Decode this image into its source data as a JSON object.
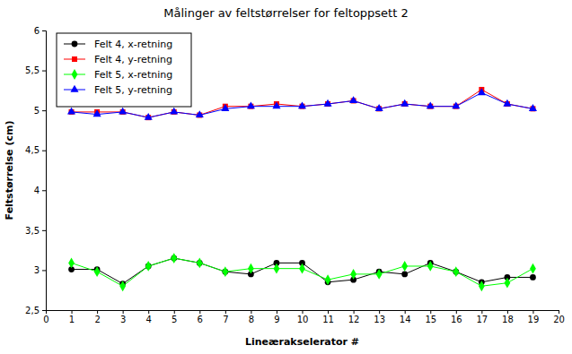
{
  "chart_data": {
    "type": "line",
    "title": "Målinger av feltstørrelser for feltoppsett 2",
    "x_label": "Lineærakselerator #",
    "y_label": "Feltstørrelse (cm)",
    "x": [
      1,
      2,
      3,
      4,
      5,
      6,
      7,
      8,
      9,
      10,
      11,
      12,
      13,
      14,
      15,
      16,
      17,
      18,
      19
    ],
    "series": [
      {
        "name": "Felt 4, x-retning",
        "color": "#000000",
        "marker": "circle",
        "values": [
          3.01,
          3.01,
          2.83,
          3.05,
          3.15,
          3.09,
          2.98,
          2.95,
          3.09,
          3.09,
          2.85,
          2.88,
          2.98,
          2.95,
          3.09,
          2.98,
          2.85,
          2.91,
          2.91
        ]
      },
      {
        "name": "Felt 4, y-retning",
        "color": "#ff0000",
        "marker": "square",
        "values": [
          4.98,
          4.98,
          4.98,
          4.91,
          4.98,
          4.94,
          5.05,
          5.05,
          5.08,
          5.05,
          5.08,
          5.12,
          5.02,
          5.08,
          5.05,
          5.05,
          5.26,
          5.08,
          5.02
        ]
      },
      {
        "name": "Felt 5, x-retning",
        "color": "#00ff00",
        "marker": "diamond",
        "values": [
          3.09,
          2.98,
          2.8,
          3.05,
          3.15,
          3.09,
          2.98,
          3.02,
          3.02,
          3.02,
          2.88,
          2.95,
          2.95,
          3.05,
          3.05,
          2.98,
          2.8,
          2.84,
          3.02
        ]
      },
      {
        "name": "Felt 5, y-retning",
        "color": "#0000ff",
        "marker": "triangle",
        "values": [
          4.98,
          4.95,
          4.98,
          4.91,
          4.98,
          4.94,
          5.02,
          5.05,
          5.05,
          5.05,
          5.08,
          5.12,
          5.02,
          5.08,
          5.05,
          5.05,
          5.22,
          5.08,
          5.02
        ]
      }
    ],
    "xlim": [
      0,
      20
    ],
    "xticks": [
      0,
      1,
      2,
      3,
      4,
      5,
      6,
      7,
      8,
      9,
      10,
      11,
      12,
      13,
      14,
      15,
      16,
      17,
      18,
      19,
      20
    ],
    "ylim": [
      2.5,
      6
    ],
    "yticks": [
      {
        "value": 2.5,
        "label": "2,5"
      },
      3,
      {
        "value": 3.5,
        "label": "3,5"
      },
      4,
      {
        "value": 4.5,
        "label": "4,5"
      },
      5,
      {
        "value": 5.5,
        "label": "5,5"
      },
      6
    ],
    "grid": false,
    "legend": "top-left"
  }
}
